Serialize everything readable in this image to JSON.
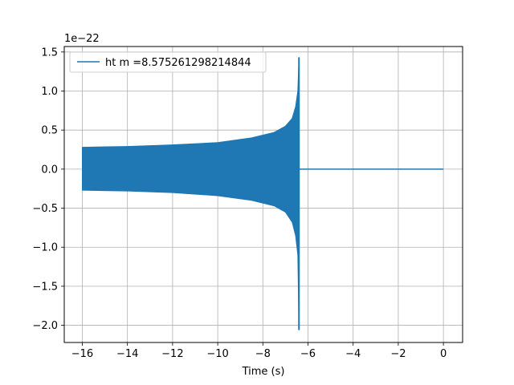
{
  "chart_data": {
    "type": "line",
    "title": "",
    "xlabel": "Time (s)",
    "ylabel": "",
    "y_offset_label": "1e−22",
    "xlim": [
      -16.8,
      0.85
    ],
    "ylim": [
      -2.22,
      1.57
    ],
    "xticks": [
      -16,
      -14,
      -12,
      -10,
      -8,
      -6,
      -4,
      -2,
      0
    ],
    "xtick_labels": [
      "−16",
      "−14",
      "−12",
      "−10",
      "−8",
      "−6",
      "−4",
      "−2",
      "0"
    ],
    "yticks": [
      1.5,
      1.0,
      0.5,
      0.0,
      -0.5,
      -1.0,
      -1.5,
      -2.0
    ],
    "ytick_labels": [
      "1.5",
      "1.0",
      "0.5",
      "0.0",
      "−0.5",
      "−1.0",
      "−1.5",
      "−2.0"
    ],
    "grid": true,
    "legend_position": "top-left",
    "series": [
      {
        "name": "ht m =8.575261298214844",
        "color": "#1f77b4",
        "signal": {
          "start_time": -16.0,
          "merger_time": -6.4,
          "end_time": 0.0,
          "envelope_upper": [
            [
              -16.0,
              0.28
            ],
            [
              -14.0,
              0.29
            ],
            [
              -12.0,
              0.31
            ],
            [
              -10.0,
              0.34
            ],
            [
              -8.5,
              0.4
            ],
            [
              -7.5,
              0.47
            ],
            [
              -7.0,
              0.55
            ],
            [
              -6.7,
              0.65
            ],
            [
              -6.55,
              0.8
            ],
            [
              -6.45,
              1.0
            ],
            [
              -6.4,
              1.43
            ]
          ],
          "envelope_lower": [
            [
              -16.0,
              -0.27
            ],
            [
              -14.0,
              -0.28
            ],
            [
              -12.0,
              -0.3
            ],
            [
              -10.0,
              -0.34
            ],
            [
              -8.5,
              -0.4
            ],
            [
              -7.5,
              -0.47
            ],
            [
              -7.0,
              -0.55
            ],
            [
              -6.7,
              -0.68
            ],
            [
              -6.55,
              -0.85
            ],
            [
              -6.45,
              -1.1
            ],
            [
              -6.4,
              -2.06
            ]
          ],
          "post_merger_value": 0.0
        }
      }
    ]
  }
}
